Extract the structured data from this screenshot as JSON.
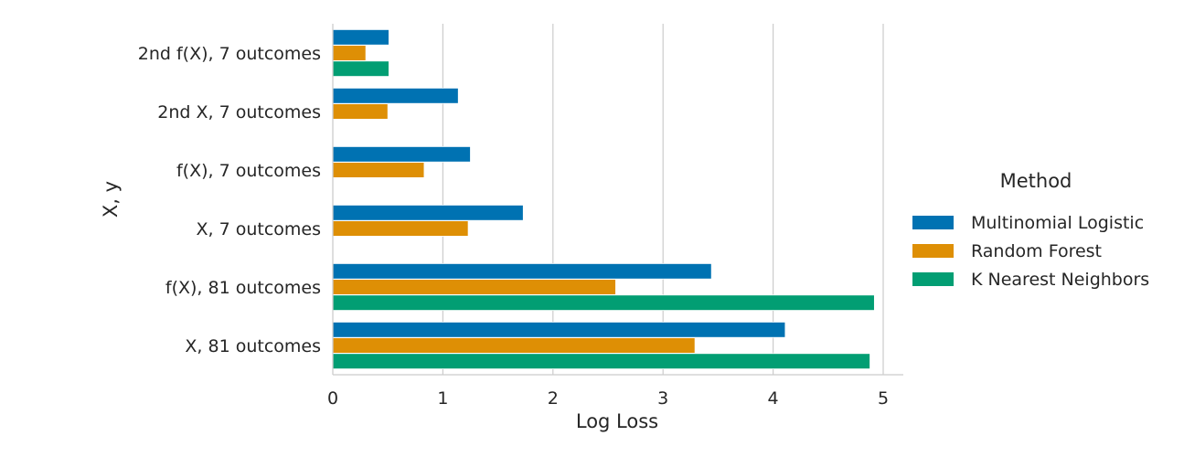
{
  "chart_data": {
    "type": "bar",
    "orientation": "horizontal",
    "categories": [
      "2nd f(X), 7 outcomes",
      "2nd X, 7 outcomes",
      "f(X), 7 outcomes",
      "X, 7 outcomes",
      "f(X), 81 outcomes",
      "X, 81 outcomes"
    ],
    "series": [
      {
        "name": "Multinomial Logistic",
        "color": "#0072b2",
        "values": [
          0.51,
          1.14,
          1.25,
          1.73,
          3.44,
          4.11
        ]
      },
      {
        "name": "Random Forest",
        "color": "#de8f05",
        "values": [
          0.3,
          0.5,
          0.83,
          1.23,
          2.57,
          3.29
        ]
      },
      {
        "name": "K Nearest Neighbors",
        "color": "#029e73",
        "values": [
          0.51,
          null,
          null,
          null,
          4.92,
          4.88
        ]
      }
    ],
    "xlabel": "Log Loss",
    "ylabel": "X, y",
    "xlim": [
      0,
      5.18
    ],
    "xticks": [
      "0",
      "1",
      "2",
      "3",
      "4",
      "5"
    ],
    "grid": "x",
    "legend": {
      "title": "Method",
      "placement": "outside-right"
    }
  }
}
